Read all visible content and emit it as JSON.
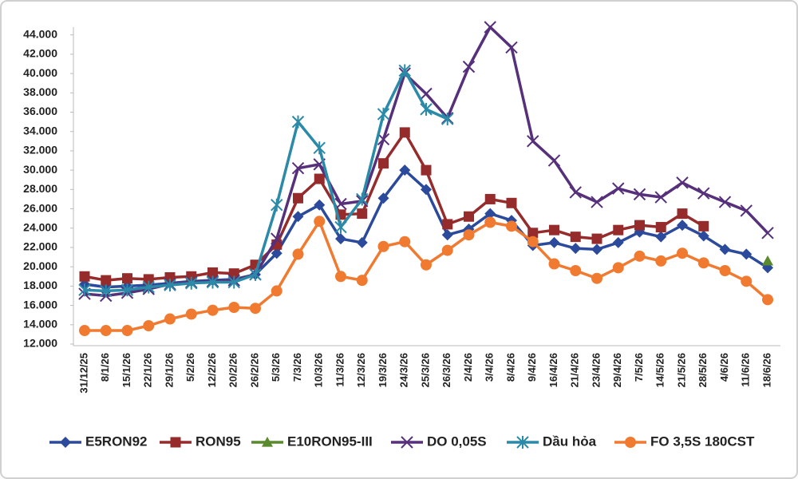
{
  "chart_data": {
    "type": "line",
    "categories": [
      "31/12/25",
      "8/1/26",
      "15/1/26",
      "22/1/26",
      "29/1/26",
      "5/2/26",
      "12/2/26",
      "20/2/26",
      "26/2/26",
      "5/3/26",
      "7/3/26",
      "10/3/26",
      "11/3/26",
      "12/3/26",
      "19/3/26",
      "24/3/26",
      "25/3/26",
      "26/3/26",
      "2/4/26",
      "3/4/26",
      "8/4/26",
      "9/4/26",
      "16/4/26",
      "21/4/26",
      "23/4/26",
      "29/4/26",
      "7/5/26",
      "14/5/26",
      "21/5/26",
      "28/5/26",
      "4/6/26",
      "11/6/26",
      "18/6/26"
    ],
    "ylim": [
      12000,
      44800
    ],
    "yticks": [
      {
        "value": 12000,
        "label": "12.000"
      },
      {
        "value": 14000,
        "label": "14.000"
      },
      {
        "value": 16000,
        "label": "16.000"
      },
      {
        "value": 18000,
        "label": "18.000"
      },
      {
        "value": 20000,
        "label": "20.000"
      },
      {
        "value": 22000,
        "label": "22.000"
      },
      {
        "value": 24000,
        "label": "24.000"
      },
      {
        "value": 26000,
        "label": "26.000"
      },
      {
        "value": 28000,
        "label": "28.000"
      },
      {
        "value": 30000,
        "label": "30.000"
      },
      {
        "value": 32000,
        "label": "32.000"
      },
      {
        "value": 34000,
        "label": "34.000"
      },
      {
        "value": 36000,
        "label": "36.000"
      },
      {
        "value": 38000,
        "label": "38.000"
      },
      {
        "value": 40000,
        "label": "40.000"
      },
      {
        "value": 42000,
        "label": "42.000"
      },
      {
        "value": 44000,
        "label": "44.000"
      }
    ],
    "legend": "bottom",
    "series": [
      {
        "name": "E5RON92",
        "color": "#2b4a9b",
        "marker": "diamond",
        "values": [
          18200,
          17900,
          18000,
          18100,
          18300,
          18500,
          18600,
          18700,
          19200,
          21400,
          25200,
          26400,
          22900,
          22500,
          27100,
          30000,
          28000,
          23300,
          23900,
          25500,
          24800,
          22200,
          22500,
          21900,
          21800,
          22500,
          23600,
          23100,
          24300,
          23200,
          21800,
          21300,
          19900
        ]
      },
      {
        "name": "RON95",
        "color": "#962b2b",
        "marker": "square",
        "values": [
          19000,
          18600,
          18800,
          18700,
          18900,
          19000,
          19400,
          19300,
          20200,
          22300,
          27100,
          29100,
          25400,
          25500,
          30700,
          33900,
          30000,
          24400,
          25200,
          27000,
          26600,
          23500,
          23800,
          23100,
          22900,
          23800,
          24300,
          24100,
          25500,
          24200,
          null,
          null,
          null
        ]
      },
      {
        "name": "E10RON95-III",
        "color": "#5a8a2e",
        "marker": "triangle",
        "values": [
          null,
          null,
          null,
          null,
          null,
          null,
          null,
          null,
          null,
          null,
          null,
          null,
          null,
          null,
          null,
          null,
          null,
          null,
          null,
          null,
          null,
          null,
          null,
          null,
          null,
          null,
          null,
          null,
          null,
          null,
          null,
          null,
          20600
        ]
      },
      {
        "name": "DO 0,05S",
        "color": "#56307a",
        "marker": "x",
        "values": [
          17200,
          17000,
          17300,
          17700,
          18200,
          18400,
          18500,
          18600,
          19200,
          22900,
          30200,
          30600,
          26500,
          26800,
          33200,
          40000,
          37900,
          35400,
          40700,
          44800,
          42700,
          33000,
          31000,
          27700,
          26700,
          28100,
          27500,
          27200,
          28700,
          27600,
          26700,
          25800,
          23500
        ]
      },
      {
        "name": "Dầu hỏa",
        "color": "#2a8aa8",
        "marker": "star",
        "values": [
          17600,
          17500,
          17600,
          17900,
          18100,
          18300,
          18400,
          18400,
          19200,
          26400,
          35000,
          32300,
          24100,
          27000,
          35800,
          40300,
          36300,
          35300,
          null,
          null,
          null,
          null,
          null,
          null,
          null,
          null,
          null,
          null,
          null,
          null,
          null,
          null,
          null
        ]
      },
      {
        "name": "FO 3,5S 180CST",
        "color": "#f07a30",
        "marker": "circle",
        "values": [
          13400,
          13400,
          13400,
          13900,
          14600,
          15100,
          15500,
          15800,
          15700,
          17500,
          21300,
          24700,
          19000,
          18600,
          22100,
          22600,
          20200,
          21700,
          23300,
          24600,
          24200,
          22600,
          20300,
          19600,
          18800,
          19900,
          21100,
          20600,
          21400,
          20400,
          19600,
          18500,
          16600
        ]
      }
    ]
  }
}
